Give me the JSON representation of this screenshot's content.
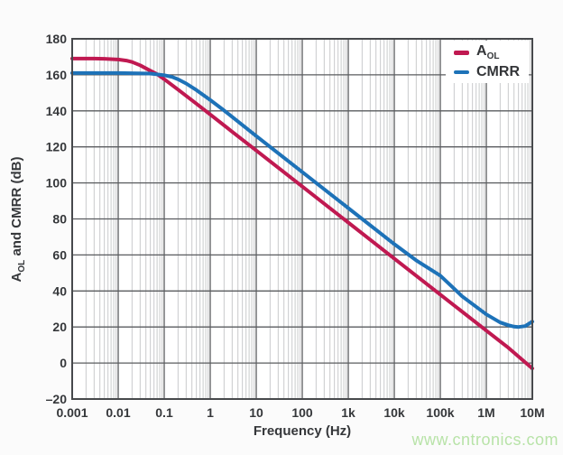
{
  "colors": {
    "aol": "#c01951",
    "cmrr": "#1d72b8",
    "grid_major": "#5a5c5f",
    "grid_minor": "#c9cacc",
    "frame": "#47494c",
    "text": "#35373a",
    "plot_bg": "#ffffff",
    "legend_bg": "#ffffff",
    "watermark": "#b8e3a8"
  },
  "watermark": {
    "text": "www.cntronics.com"
  },
  "chart_data": {
    "type": "line",
    "x_scale": "log",
    "xlim": [
      0.001,
      10000000
    ],
    "ylim": [
      -20,
      180
    ],
    "y_step": 20,
    "grid": "major-and-log-minor-vertical",
    "legend_position": "top-right-inside",
    "xlabel": "Frequency (Hz)",
    "ylabel_prefix": "A",
    "ylabel_sub": "OL",
    "ylabel_rest": " and CMRR (dB)",
    "x_tick_labels": [
      "0.001",
      "0.01",
      "0.1",
      "1",
      "10",
      "100",
      "1k",
      "10k",
      "100k",
      "1M",
      "10M"
    ],
    "y_tick_labels": [
      "180",
      "160",
      "140",
      "120",
      "100",
      "80",
      "60",
      "40",
      "20",
      "0",
      "–20"
    ],
    "series": [
      {
        "name_main": "A",
        "name_sub": "OL",
        "color": "#c01951",
        "description": "Open-loop gain, flat 169 dB below ~0.03 Hz then -20 dB/decade",
        "points": [
          [
            0.001,
            169
          ],
          [
            0.003,
            169
          ],
          [
            0.005,
            168.9
          ],
          [
            0.01,
            168.5
          ],
          [
            0.015,
            167.9
          ],
          [
            0.02,
            167.1
          ],
          [
            0.03,
            165.3
          ],
          [
            0.05,
            162.3
          ],
          [
            0.07,
            160.4
          ],
          [
            0.1,
            157.6
          ],
          [
            0.2,
            151.8
          ],
          [
            0.5,
            144
          ],
          [
            1,
            138
          ],
          [
            3,
            128.4
          ],
          [
            10,
            118
          ],
          [
            100,
            98
          ],
          [
            1000,
            78
          ],
          [
            10000,
            58
          ],
          [
            100000,
            38
          ],
          [
            1000000,
            18
          ],
          [
            3000000,
            8.5
          ],
          [
            10000000,
            -3
          ]
        ]
      },
      {
        "name_main": "CMRR",
        "name_sub": "",
        "color": "#1d72b8",
        "description": "CMRR, flat 161 dB below ~0.2 Hz, -20 dB/decade, dip to 20 dB near 5 MHz then rises",
        "points": [
          [
            0.001,
            161
          ],
          [
            0.01,
            161
          ],
          [
            0.05,
            160.7
          ],
          [
            0.1,
            159.8
          ],
          [
            0.15,
            158.8
          ],
          [
            0.2,
            157.5
          ],
          [
            0.3,
            155.2
          ],
          [
            0.5,
            151.6
          ],
          [
            1,
            146
          ],
          [
            2,
            140.2
          ],
          [
            5,
            132.2
          ],
          [
            10,
            126
          ],
          [
            100,
            106
          ],
          [
            1000,
            86
          ],
          [
            10000,
            66
          ],
          [
            30000,
            57
          ],
          [
            100000,
            48.5
          ],
          [
            300000,
            37
          ],
          [
            1000000,
            27
          ],
          [
            2000000,
            22.5
          ],
          [
            3000000,
            21
          ],
          [
            4000000,
            20.2
          ],
          [
            5000000,
            20
          ],
          [
            7000000,
            20.5
          ],
          [
            10000000,
            23
          ]
        ]
      }
    ]
  }
}
